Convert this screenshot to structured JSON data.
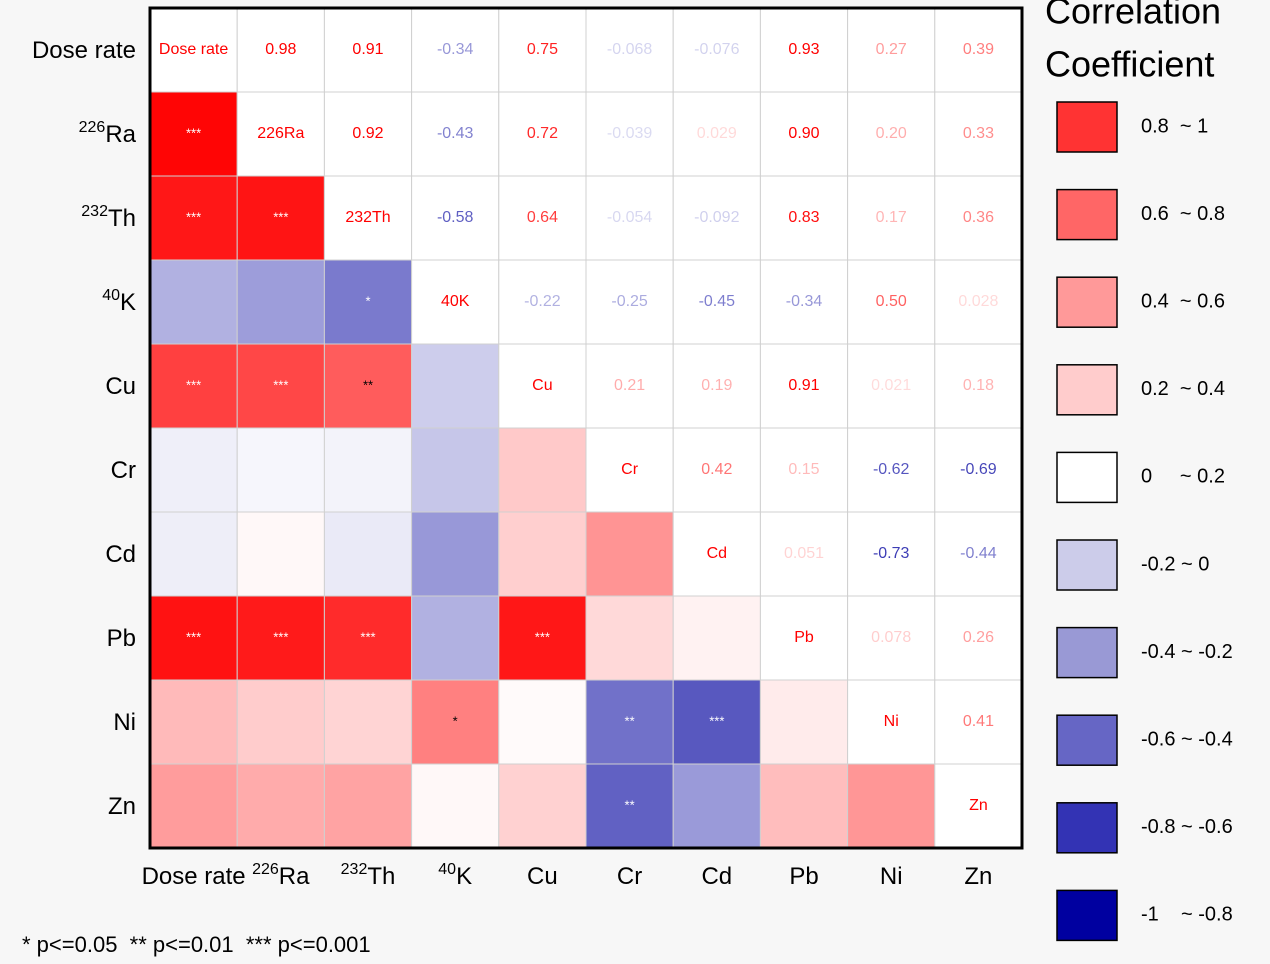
{
  "chart_data": {
    "type": "heatmap",
    "variables": [
      {
        "text": "Dose rate"
      },
      {
        "sup": "226",
        "text": "Ra"
      },
      {
        "sup": "232",
        "text": "Th"
      },
      {
        "sup": "40",
        "text": "K"
      },
      {
        "text": "Cu"
      },
      {
        "text": "Cr"
      },
      {
        "text": "Cd"
      },
      {
        "text": "Pb"
      },
      {
        "text": "Ni"
      },
      {
        "text": "Zn"
      }
    ],
    "diagonal": [
      "Dose rate",
      "226Ra",
      "232Th",
      "40K",
      "Cu",
      "Cr",
      "Cd",
      "Pb",
      "Ni",
      "Zn"
    ],
    "values": [
      [
        null,
        0.98,
        0.91,
        -0.34,
        0.75,
        -0.068,
        -0.076,
        0.93,
        0.27,
        0.39
      ],
      [
        null,
        null,
        0.92,
        -0.43,
        0.72,
        -0.039,
        0.029,
        0.9,
        0.2,
        0.33
      ],
      [
        null,
        null,
        null,
        -0.58,
        0.64,
        -0.054,
        -0.092,
        0.83,
        0.17,
        0.36
      ],
      [
        null,
        null,
        null,
        null,
        -0.22,
        -0.25,
        -0.45,
        -0.34,
        0.5,
        0.028
      ],
      [
        null,
        null,
        null,
        null,
        null,
        0.21,
        0.19,
        0.91,
        0.021,
        0.18
      ],
      [
        null,
        null,
        null,
        null,
        null,
        null,
        0.42,
        0.15,
        -0.62,
        -0.69
      ],
      [
        null,
        null,
        null,
        null,
        null,
        null,
        null,
        0.051,
        -0.73,
        -0.44
      ],
      [
        null,
        null,
        null,
        null,
        null,
        null,
        null,
        null,
        0.078,
        0.26
      ],
      [
        null,
        null,
        null,
        null,
        null,
        null,
        null,
        null,
        null,
        0.41
      ],
      [
        null,
        null,
        null,
        null,
        null,
        null,
        null,
        null,
        null,
        null
      ]
    ],
    "value_labels": [
      [
        null,
        "0.98",
        "0.91",
        "-0.34",
        "0.75",
        "-0.068",
        "-0.076",
        "0.93",
        "0.27",
        "0.39"
      ],
      [
        null,
        null,
        "0.92",
        "-0.43",
        "0.72",
        "-0.039",
        "0.029",
        "0.90",
        "0.20",
        "0.33"
      ],
      [
        null,
        null,
        null,
        "-0.58",
        "0.64",
        "-0.054",
        "-0.092",
        "0.83",
        "0.17",
        "0.36"
      ],
      [
        null,
        null,
        null,
        null,
        "-0.22",
        "-0.25",
        "-0.45",
        "-0.34",
        "0.50",
        "0.028"
      ],
      [
        null,
        null,
        null,
        null,
        null,
        "0.21",
        "0.19",
        "0.91",
        "0.021",
        "0.18"
      ],
      [
        null,
        null,
        null,
        null,
        null,
        null,
        "0.42",
        "0.15",
        "-0.62",
        "-0.69"
      ],
      [
        null,
        null,
        null,
        null,
        null,
        null,
        null,
        "0.051",
        "-0.73",
        "-0.44"
      ],
      [
        null,
        null,
        null,
        null,
        null,
        null,
        null,
        null,
        "0.078",
        "0.26"
      ],
      [
        null,
        null,
        null,
        null,
        null,
        null,
        null,
        null,
        null,
        "0.41"
      ],
      [
        null,
        null,
        null,
        null,
        null,
        null,
        null,
        null,
        null,
        null
      ]
    ],
    "stars": [
      [
        null,
        null,
        null,
        null,
        null,
        null,
        null,
        null,
        null,
        null
      ],
      [
        "***",
        null,
        null,
        null,
        null,
        null,
        null,
        null,
        null,
        null
      ],
      [
        "***",
        "***",
        null,
        null,
        null,
        null,
        null,
        null,
        null,
        null
      ],
      [
        null,
        null,
        "*",
        null,
        null,
        null,
        null,
        null,
        null,
        null
      ],
      [
        "***",
        "***",
        "**",
        null,
        null,
        null,
        null,
        null,
        null,
        null
      ],
      [
        null,
        null,
        null,
        null,
        null,
        null,
        null,
        null,
        null,
        null
      ],
      [
        null,
        null,
        null,
        null,
        null,
        null,
        null,
        null,
        null,
        null
      ],
      [
        "***",
        "***",
        "***",
        null,
        "***",
        null,
        null,
        null,
        null,
        null
      ],
      [
        null,
        null,
        null,
        "*",
        null,
        "**",
        "***",
        null,
        null,
        null
      ],
      [
        null,
        null,
        null,
        null,
        null,
        "**",
        null,
        null,
        null,
        null
      ]
    ],
    "positive_color": "#ff0000",
    "negative_color": "#1a1aa8",
    "legend": {
      "title": [
        "Correlation",
        "Coefficient"
      ],
      "items": [
        {
          "label": "0.8  ~ 1",
          "color": "#ff3333"
        },
        {
          "label": "0.6  ~ 0.8",
          "color": "#ff6666"
        },
        {
          "label": "0.4  ~ 0.6",
          "color": "#ff9999"
        },
        {
          "label": "0.2  ~ 0.4",
          "color": "#ffcccc"
        },
        {
          "label": "0     ~ 0.2",
          "color": "#ffffff"
        },
        {
          "label": "-0.2 ~ 0",
          "color": "#ccccea"
        },
        {
          "label": "-0.4 ~ -0.2",
          "color": "#9999d5"
        },
        {
          "label": "-0.6 ~ -0.4",
          "color": "#6666c5"
        },
        {
          "label": "-0.8 ~ -0.6",
          "color": "#3333b4"
        },
        {
          "label": "-1    ~ -0.8",
          "color": "#0000a0"
        }
      ]
    },
    "note": "* p<=0.05  ** p<=0.01  *** p<=0.001"
  }
}
